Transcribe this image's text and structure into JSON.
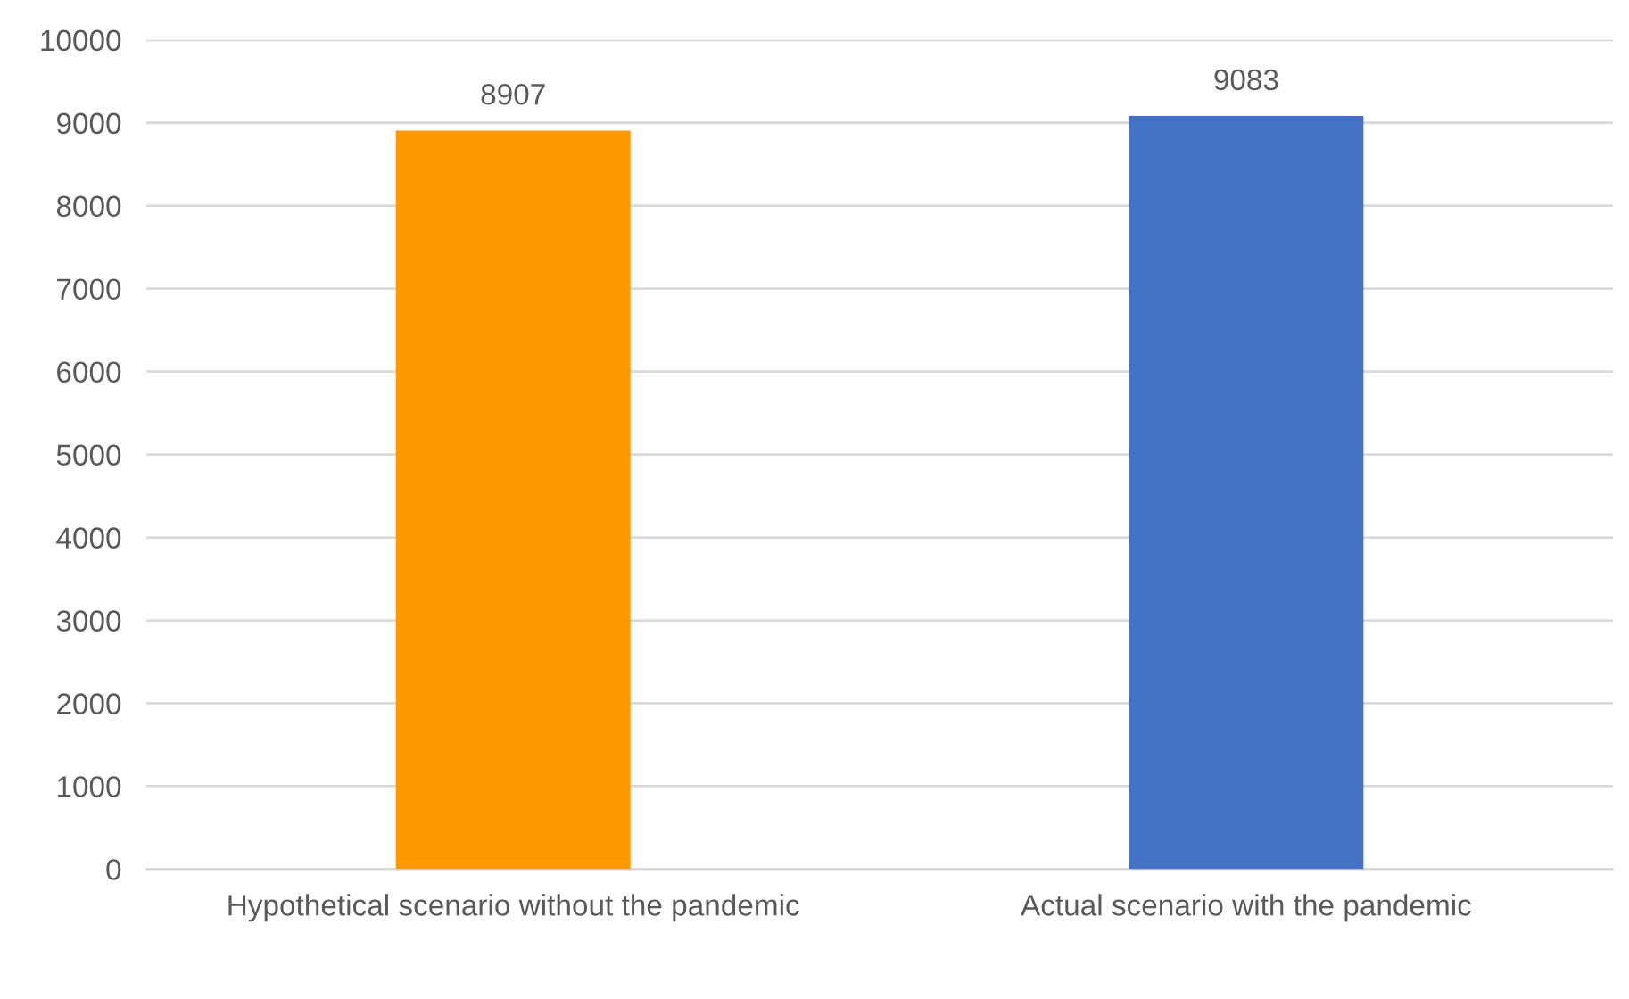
{
  "chart_data": {
    "type": "bar",
    "categories": [
      "Hypothetical scenario without the pandemic",
      "Actual scenario with the pandemic"
    ],
    "values": [
      8907,
      9083
    ],
    "colors": [
      "#ff9900",
      "#4472c4"
    ],
    "ylim": [
      0,
      10000
    ],
    "yticks": [
      0,
      1000,
      2000,
      3000,
      4000,
      5000,
      6000,
      7000,
      8000,
      9000,
      10000
    ],
    "grid": "y",
    "data_labels": true,
    "legend": false
  }
}
